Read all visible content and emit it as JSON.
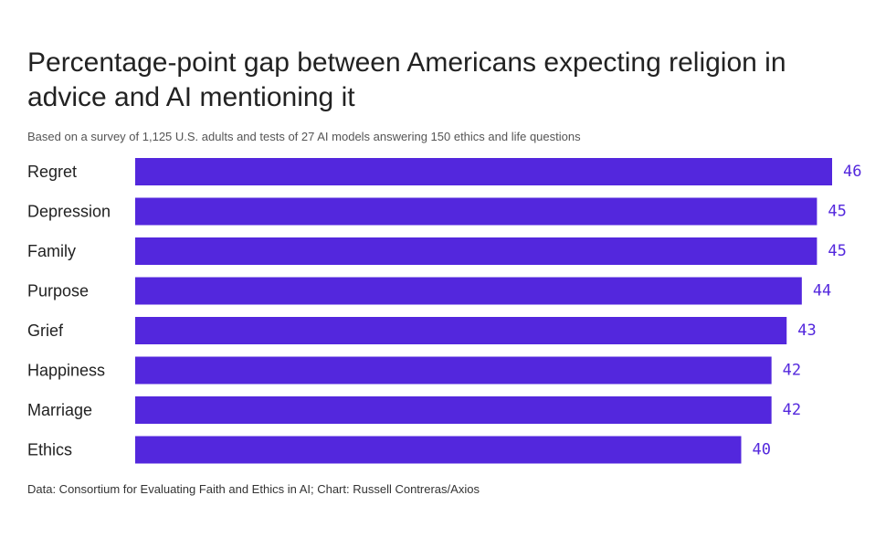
{
  "header": {
    "title": "Percentage-point gap between Americans expecting religion in advice and AI mentioning it",
    "subtitle": "Based on a survey of 1,125 U.S. adults and tests of 27 AI models answering 150 ethics and life questions"
  },
  "footer": {
    "source": "Data: Consortium for Evaluating Faith and Ethics in AI; Chart: Russell Contreras/Axios"
  },
  "colors": {
    "bar": "#5327DD",
    "value_label": "#5327DD",
    "category_label": "#222222"
  },
  "chart_data": {
    "type": "bar",
    "orientation": "horizontal",
    "categories": [
      "Regret",
      "Depression",
      "Family",
      "Purpose",
      "Grief",
      "Happiness",
      "Marriage",
      "Ethics"
    ],
    "values": [
      46,
      45,
      45,
      44,
      43,
      42,
      42,
      40
    ],
    "title": "Percentage-point gap between Americans expecting religion in advice and AI mentioning it",
    "subtitle": "Based on a survey of 1,125 U.S. adults and tests of 27 AI models answering 150 ethics and life questions",
    "xlim": [
      0,
      46
    ],
    "grid": false,
    "legend": "none",
    "data_labels": true
  }
}
